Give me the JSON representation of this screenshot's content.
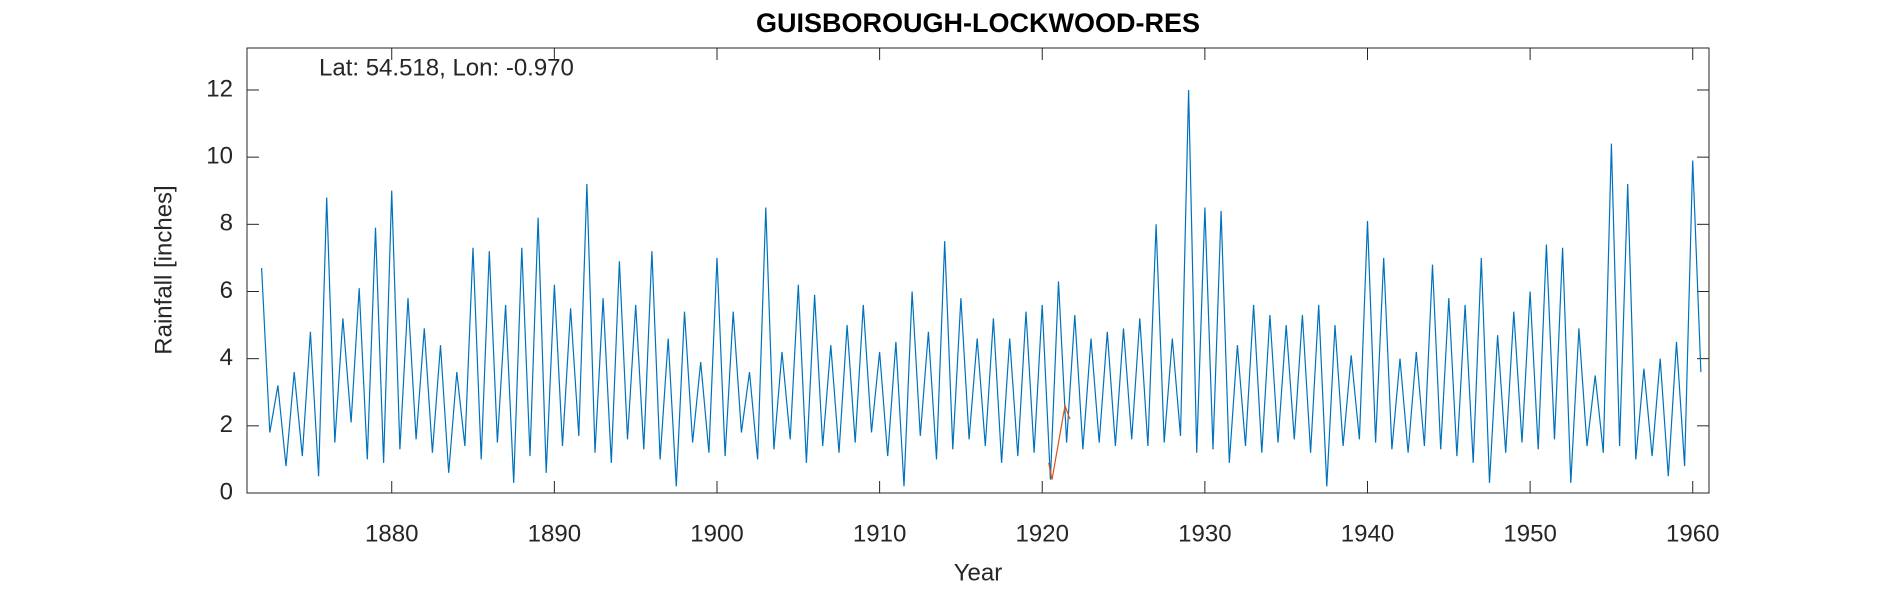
{
  "chart_data": {
    "type": "line",
    "title": "GUISBOROUGH-LOCKWOOD-RES",
    "annotation": "Lat: 54.518, Lon: -0.970",
    "xlabel": "Year",
    "ylabel": "Rainfall [inches]",
    "xlim": [
      1871.1,
      1961
    ],
    "ylim": [
      0,
      13.25
    ],
    "xticks": [
      1880,
      1890,
      1900,
      1910,
      1920,
      1930,
      1940,
      1950,
      1960
    ],
    "yticks": [
      0,
      2,
      4,
      6,
      8,
      10,
      12
    ],
    "series": [
      {
        "color": "#0072bd",
        "x": [
          1872,
          1872.5,
          1873,
          1873.5,
          1874,
          1874.5,
          1875,
          1875.5,
          1876,
          1876.5,
          1877,
          1877.5,
          1878,
          1878.5,
          1879,
          1879.5,
          1880,
          1880.5,
          1881,
          1881.5,
          1882,
          1882.5,
          1883,
          1883.5,
          1884,
          1884.5,
          1885,
          1885.5,
          1886,
          1886.5,
          1887,
          1887.5,
          1888,
          1888.5,
          1889,
          1889.5,
          1890,
          1890.5,
          1891,
          1891.5,
          1892,
          1892.5,
          1893,
          1893.5,
          1894,
          1894.5,
          1895,
          1895.5,
          1896,
          1896.5,
          1897,
          1897.5,
          1898,
          1898.5,
          1899,
          1899.5,
          1900,
          1900.5,
          1901,
          1901.5,
          1902,
          1902.5,
          1903,
          1903.5,
          1904,
          1904.5,
          1905,
          1905.5,
          1906,
          1906.5,
          1907,
          1907.5,
          1908,
          1908.5,
          1909,
          1909.5,
          1910,
          1910.5,
          1911,
          1911.5,
          1912,
          1912.5,
          1913,
          1913.5,
          1914,
          1914.5,
          1915,
          1915.5,
          1916,
          1916.5,
          1917,
          1917.5,
          1918,
          1918.5,
          1919,
          1919.5,
          1920,
          1920.5,
          1921,
          1921.5,
          1922,
          1922.5,
          1923,
          1923.5,
          1924,
          1924.5,
          1925,
          1925.5,
          1926,
          1926.5,
          1927,
          1927.5,
          1928,
          1928.5,
          1929,
          1929.5,
          1930,
          1930.5,
          1931,
          1931.5,
          1932,
          1932.5,
          1933,
          1933.5,
          1934,
          1934.5,
          1935,
          1935.5,
          1936,
          1936.5,
          1937,
          1937.5,
          1938,
          1938.5,
          1939,
          1939.5,
          1940,
          1940.5,
          1941,
          1941.5,
          1942,
          1942.5,
          1943,
          1943.5,
          1944,
          1944.5,
          1945,
          1945.5,
          1946,
          1946.5,
          1947,
          1947.5,
          1948,
          1948.5,
          1949,
          1949.5,
          1950,
          1950.5,
          1951,
          1951.5,
          1952,
          1952.5,
          1953,
          1953.5,
          1954,
          1954.5,
          1955,
          1955.5,
          1956,
          1956.5,
          1957,
          1957.5,
          1958,
          1958.5,
          1959,
          1959.5,
          1960,
          1960.5
        ],
        "values": [
          6.7,
          1.8,
          3.2,
          0.8,
          3.6,
          1.1,
          4.8,
          0.5,
          8.8,
          1.5,
          5.2,
          2.1,
          6.1,
          1.0,
          7.9,
          0.9,
          9.0,
          1.3,
          5.8,
          1.6,
          4.9,
          1.2,
          4.4,
          0.6,
          3.6,
          1.4,
          7.3,
          1.0,
          7.2,
          1.5,
          5.6,
          0.3,
          7.3,
          1.1,
          8.2,
          0.6,
          6.2,
          1.4,
          5.5,
          1.7,
          9.2,
          1.2,
          5.8,
          0.9,
          6.9,
          1.6,
          5.6,
          1.3,
          7.2,
          1.0,
          4.6,
          0.2,
          5.4,
          1.5,
          3.9,
          1.2,
          7.0,
          1.1,
          5.4,
          1.8,
          3.6,
          1.0,
          8.5,
          1.3,
          4.2,
          1.6,
          6.2,
          0.9,
          5.9,
          1.4,
          4.4,
          1.2,
          5.0,
          1.5,
          5.6,
          1.8,
          4.2,
          1.1,
          4.5,
          0.2,
          6.0,
          1.7,
          4.8,
          1.0,
          7.5,
          1.3,
          5.8,
          1.6,
          4.6,
          1.4,
          5.2,
          0.9,
          4.6,
          1.1,
          5.4,
          1.2,
          5.6,
          0.4,
          6.3,
          1.5,
          5.3,
          1.3,
          4.6,
          1.5,
          4.8,
          1.4,
          4.9,
          1.6,
          5.2,
          1.4,
          8.0,
          1.5,
          4.6,
          1.7,
          12.0,
          1.2,
          8.5,
          1.3,
          8.4,
          0.9,
          4.4,
          1.4,
          5.6,
          1.2,
          5.3,
          1.5,
          5.0,
          1.6,
          5.3,
          1.2,
          5.6,
          0.2,
          5.0,
          1.4,
          4.1,
          1.6,
          8.1,
          1.5,
          7.0,
          1.3,
          4.0,
          1.2,
          4.2,
          1.4,
          6.8,
          1.3,
          5.8,
          1.1,
          5.6,
          0.9,
          7.0,
          0.3,
          4.7,
          1.2,
          5.4,
          1.5,
          6.0,
          1.3,
          7.4,
          1.6,
          7.3,
          0.3,
          4.9,
          1.4,
          3.5,
          1.2,
          10.4,
          1.4,
          9.2,
          1.0,
          3.7,
          1.1,
          4.0,
          0.5,
          4.5,
          0.8,
          9.9,
          3.6
        ]
      },
      {
        "color": "#d95319",
        "x": [
          1920.4,
          1920.6,
          1921.4,
          1921.7
        ],
        "values": [
          0.9,
          0.4,
          2.6,
          2.2
        ]
      }
    ]
  }
}
